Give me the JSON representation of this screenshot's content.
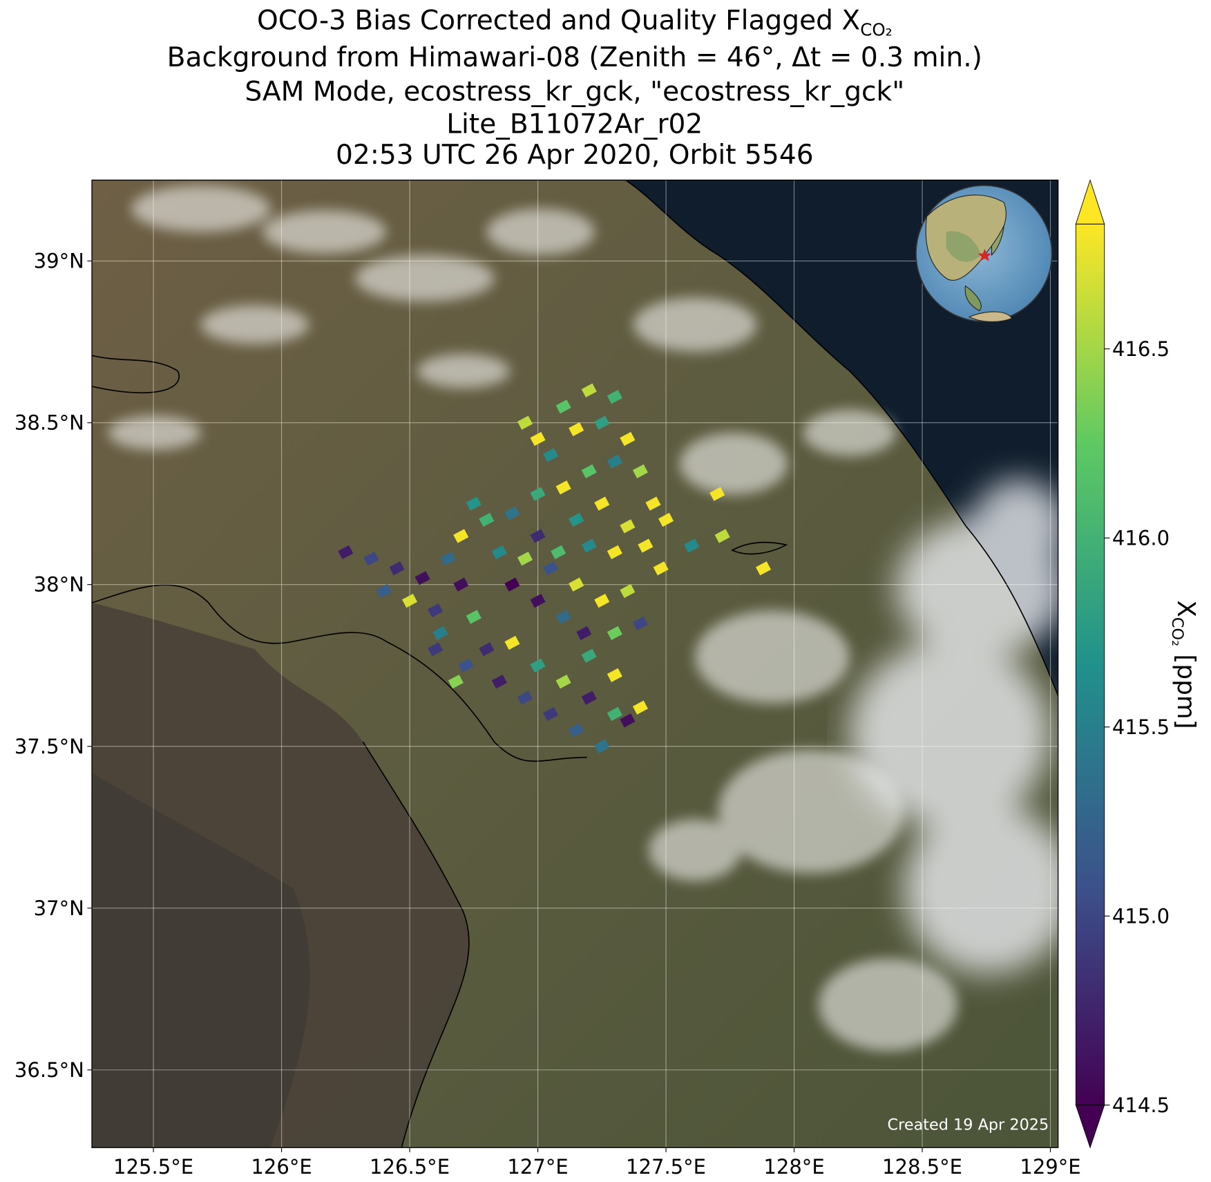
{
  "chart_data": {
    "type": "scatter",
    "title": "OCO-3 Bias Corrected and Quality Flagged X",
    "title_subscript": "CO₂",
    "subtitles": [
      "Background from Himawari-08 (Zenith = 46°, Δt =  0.3 min.)",
      "SAM Mode, ecostress_kr_gck, \"ecostress_kr_gck\"",
      "Lite_B11072Ar_r02",
      "02:53 UTC 26 Apr 2020, Orbit 5546"
    ],
    "xlim": [
      125.26,
      129.03
    ],
    "ylim": [
      36.26,
      39.25
    ],
    "xticks": [
      {
        "value": 125.5,
        "label": "125.5°E"
      },
      {
        "value": 126,
        "label": "126°E"
      },
      {
        "value": 126.5,
        "label": "126.5°E"
      },
      {
        "value": 127,
        "label": "127°E"
      },
      {
        "value": 127.5,
        "label": "127.5°E"
      },
      {
        "value": 128,
        "label": "128°E"
      },
      {
        "value": 128.5,
        "label": "128.5°E"
      },
      {
        "value": 129,
        "label": "129°E"
      }
    ],
    "yticks": [
      {
        "value": 36.5,
        "label": "36.5°N"
      },
      {
        "value": 37,
        "label": "37°N"
      },
      {
        "value": 37.5,
        "label": "37.5°N"
      },
      {
        "value": 38,
        "label": "38°N"
      },
      {
        "value": 38.5,
        "label": "38.5°N"
      },
      {
        "value": 39,
        "label": "39°N"
      }
    ],
    "grid": true,
    "x": [
      126.25,
      126.35,
      126.45,
      126.4,
      126.55,
      126.5,
      126.6,
      126.65,
      126.7,
      126.62,
      126.75,
      126.8,
      126.72,
      126.85,
      126.9,
      126.95,
      127.0,
      127.05,
      127.1,
      127.15,
      127.2,
      127.25,
      127.3,
      127.35,
      127.4,
      127.2,
      127.3,
      127.1,
      127.0,
      126.9,
      126.85,
      126.8,
      126.75,
      126.9,
      127.0,
      127.05,
      127.15,
      127.25,
      127.35,
      127.4,
      127.3,
      127.18,
      127.08,
      127.2,
      126.95,
      126.7,
      126.6,
      126.68,
      126.95,
      127.0,
      127.05,
      127.1,
      127.15,
      127.2,
      127.25,
      127.3,
      127.35,
      127.3,
      127.4,
      127.45,
      127.2,
      127.1,
      127.0,
      127.25,
      127.35,
      127.42,
      127.3,
      127.15,
      127.5,
      127.7,
      127.72,
      127.6,
      127.88,
      127.48
    ],
    "y": [
      38.1,
      38.08,
      38.05,
      37.98,
      38.02,
      37.95,
      37.92,
      38.08,
      38.0,
      37.85,
      37.9,
      37.8,
      37.75,
      37.7,
      37.82,
      37.65,
      37.75,
      37.6,
      37.7,
      37.55,
      37.65,
      37.5,
      37.6,
      37.58,
      37.62,
      37.78,
      37.72,
      37.9,
      37.95,
      38.0,
      38.1,
      38.2,
      38.25,
      38.22,
      38.15,
      38.05,
      38.0,
      37.95,
      37.98,
      37.88,
      37.85,
      37.85,
      38.1,
      38.12,
      38.08,
      38.15,
      37.8,
      37.7,
      38.5,
      38.45,
      38.4,
      38.55,
      38.48,
      38.6,
      38.5,
      38.58,
      38.45,
      38.38,
      38.35,
      38.25,
      38.35,
      38.3,
      38.28,
      38.25,
      38.18,
      38.12,
      38.1,
      38.2,
      38.2,
      38.28,
      38.15,
      38.12,
      38.05,
      38.05
    ],
    "values": [
      414.7,
      415.0,
      414.8,
      415.2,
      414.6,
      416.7,
      414.9,
      415.3,
      414.6,
      415.5,
      416.2,
      414.8,
      415.1,
      414.7,
      416.8,
      415.0,
      415.8,
      414.9,
      416.5,
      415.2,
      414.7,
      415.4,
      416.0,
      414.6,
      416.8,
      415.9,
      416.8,
      415.3,
      414.6,
      414.5,
      415.6,
      416.0,
      415.7,
      415.4,
      414.8,
      415.1,
      416.7,
      416.8,
      416.6,
      415.0,
      416.3,
      414.7,
      416.1,
      415.6,
      416.5,
      416.8,
      414.9,
      416.4,
      416.6,
      416.8,
      415.6,
      416.2,
      416.8,
      416.6,
      415.8,
      416.0,
      416.8,
      415.5,
      416.5,
      416.8,
      416.2,
      416.8,
      415.9,
      416.8,
      416.7,
      416.8,
      416.8,
      415.7,
      416.8,
      416.8,
      416.6,
      415.6,
      416.8,
      416.8
    ],
    "colormap": [
      "#440154",
      "#3b528b",
      "#21918c",
      "#5ec962",
      "#fde725"
    ],
    "colorbar": {
      "label": "X",
      "label_subscript": "CO₂",
      "label_unit": " [ppm]",
      "lim": [
        414.5,
        416.83
      ],
      "ticks": [
        414.5,
        415,
        415.5,
        416.0,
        416.5
      ]
    },
    "note": "Created 19 Apr 2025"
  }
}
